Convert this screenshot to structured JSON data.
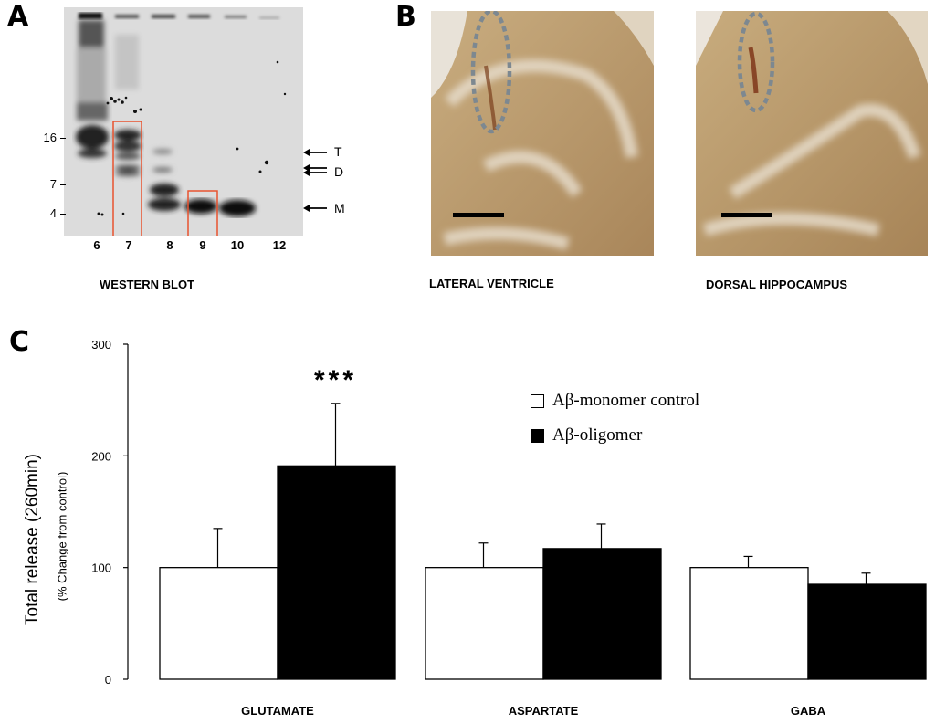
{
  "panels": {
    "a_letter": "A",
    "b_letter": "B",
    "c_letter": "C"
  },
  "western_blot": {
    "caption": "WESTERN BLOT",
    "mw_markers": [
      "16",
      "7",
      "4"
    ],
    "lanes": [
      "6",
      "7",
      "8",
      "9",
      "10",
      "12"
    ],
    "band_labels": [
      "T",
      "D",
      "M"
    ],
    "highlight_color": "#e8532f"
  },
  "brain_sections": {
    "left_caption": "LATERAL VENTRICLE",
    "right_caption": "DORSAL HIPPOCAMPUS"
  },
  "chart_data": {
    "type": "bar",
    "categories": [
      "GLUTAMATE",
      "ASPARTATE",
      "GABA"
    ],
    "series": [
      {
        "name": "Aβ-monomer control",
        "values": [
          100,
          100,
          100
        ],
        "errors": [
          35,
          22,
          10
        ],
        "color": "#ffffff"
      },
      {
        "name": "Aβ-oligomer",
        "values": [
          191,
          117,
          85
        ],
        "errors": [
          56,
          22,
          10
        ],
        "color": "#000000"
      }
    ],
    "ylabel": "Total release (260min)",
    "ylabel_sub": "(% Change from control)",
    "yticks": [
      "0",
      "100",
      "200",
      "300"
    ],
    "ylim": [
      0,
      300
    ],
    "annotation": "***",
    "legend_placement": "top-right",
    "grid": false
  }
}
